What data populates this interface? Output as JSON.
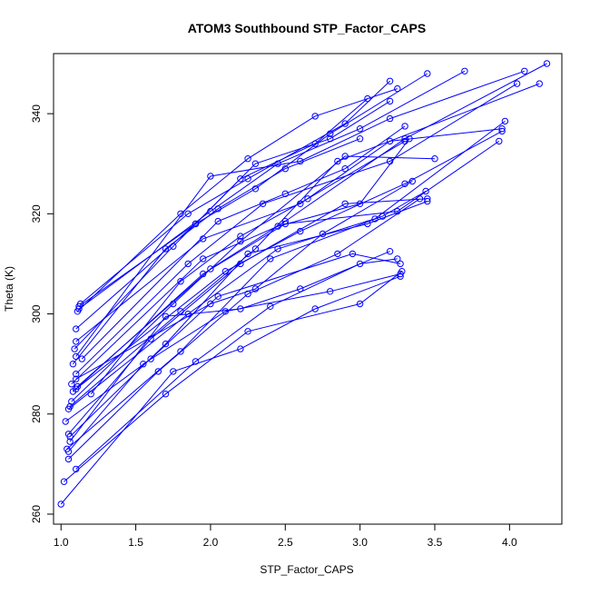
{
  "chart_data": {
    "type": "line",
    "title": "ATOM3 Southbound STP_Factor_CAPS",
    "xlabel": "STP_Factor_CAPS",
    "ylabel": "Theta (K)",
    "xlim": [
      0.95,
      4.35
    ],
    "ylim": [
      258,
      352
    ],
    "xticks": [
      1.0,
      1.5,
      2.0,
      2.5,
      3.0,
      3.5,
      4.0
    ],
    "xtick_labels": [
      "1.0",
      "1.5",
      "2.0",
      "2.5",
      "3.0",
      "3.5",
      "4.0"
    ],
    "yticks": [
      260,
      280,
      300,
      320,
      340
    ],
    "ytick_labels": [
      "260",
      "280",
      "300",
      "320",
      "340"
    ],
    "grid": false,
    "legend": "none",
    "series_color": "#0000ff",
    "marker": "open-circle",
    "series": [
      {
        "x": [
          1.12,
          1.9,
          2.3,
          2.8,
          3.45
        ],
        "y": [
          301.5,
          318,
          325,
          336,
          348
        ]
      },
      {
        "x": [
          1.13,
          1.85,
          2.25,
          2.9,
          3.2
        ],
        "y": [
          302,
          320,
          327,
          338,
          346.5
        ]
      },
      {
        "x": [
          1.11,
          1.8,
          2.25,
          2.7,
          3.25
        ],
        "y": [
          300.5,
          320,
          331,
          339.5,
          345
        ]
      },
      {
        "x": [
          1.12,
          2.0,
          2.45,
          3.0,
          3.7
        ],
        "y": [
          301,
          320.5,
          330,
          337,
          348.5
        ]
      },
      {
        "x": [
          1.1,
          1.9,
          2.3,
          2.8,
          3.2
        ],
        "y": [
          297,
          318,
          330,
          335,
          342.5
        ]
      },
      {
        "x": [
          1.09,
          1.75,
          2.2,
          2.7,
          3.05
        ],
        "y": [
          293,
          313.5,
          327,
          334,
          343
        ]
      },
      {
        "x": [
          1.1,
          2.0,
          2.6,
          3.2,
          4.1
        ],
        "y": [
          291.5,
          327.5,
          330.5,
          339,
          348.5
        ]
      },
      {
        "x": [
          1.08,
          1.7,
          2.05,
          2.5,
          3.0
        ],
        "y": [
          290,
          313,
          321,
          329,
          335
        ]
      },
      {
        "x": [
          1.1,
          1.85,
          2.35,
          3.2,
          4.05
        ],
        "y": [
          288,
          310,
          322,
          330.5,
          346
        ]
      },
      {
        "x": [
          1.11,
          2.0,
          2.5,
          3.3,
          4.25
        ],
        "y": [
          285.5,
          309,
          318.5,
          335,
          350
        ]
      },
      {
        "x": [
          1.07,
          1.75,
          2.2,
          2.9,
          3.5
        ],
        "y": [
          282.5,
          302,
          314.5,
          331.5,
          331
        ]
      },
      {
        "x": [
          1.06,
          1.8,
          2.3,
          2.85,
          4.2
        ],
        "y": [
          281.5,
          300.5,
          313,
          330.5,
          346
        ]
      },
      {
        "x": [
          1.05,
          1.85,
          2.45,
          3.1,
          3.97
        ],
        "y": [
          281,
          300,
          313,
          319,
          338.5
        ]
      },
      {
        "x": [
          1.1,
          2.1,
          2.6,
          3.3,
          3.95
        ],
        "y": [
          285,
          308.5,
          316.5,
          326,
          336.5
        ]
      },
      {
        "x": [
          1.08,
          1.95,
          2.5,
          3.25,
          3.93
        ],
        "y": [
          284.5,
          308,
          318,
          320.5,
          334.5
        ]
      },
      {
        "x": [
          1.05,
          1.6,
          2.2,
          2.9,
          3.45
        ],
        "y": [
          276,
          295,
          310,
          322,
          323
        ]
      },
      {
        "x": [
          1.06,
          1.7,
          2.25,
          3.05,
          3.45
        ],
        "y": [
          275.5,
          294,
          312,
          318,
          322.5
        ]
      },
      {
        "x": [
          1.04,
          1.8,
          2.4,
          3.15,
          3.44
        ],
        "y": [
          273,
          292.5,
          311,
          319.5,
          324.5
        ]
      },
      {
        "x": [
          1.05,
          1.65,
          2.25,
          2.85,
          3.4
        ],
        "y": [
          271,
          288.5,
          304,
          312,
          323
        ]
      },
      {
        "x": [
          1.1,
          1.9,
          2.4,
          3.0,
          3.25
        ],
        "y": [
          269,
          290.5,
          301.5,
          310,
          311
        ]
      },
      {
        "x": [
          1.02,
          1.7,
          2.25,
          3.0,
          3.28
        ],
        "y": [
          266.5,
          284,
          296.5,
          302,
          308.5
        ]
      },
      {
        "x": [
          1.0,
          1.75,
          2.2,
          2.7,
          3.27
        ],
        "y": [
          262,
          288.5,
          293,
          301,
          307.5
        ]
      },
      {
        "x": [
          1.03,
          1.6,
          2.05,
          2.95,
          3.27
        ],
        "y": [
          278.5,
          291,
          303.5,
          312,
          310
        ]
      },
      {
        "x": [
          1.05,
          1.55,
          2.1,
          2.8,
          3.27
        ],
        "y": [
          272.5,
          290,
          300.5,
          304.5,
          308
        ]
      },
      {
        "x": [
          1.06,
          1.7,
          2.2,
          2.6,
          3.2
        ],
        "y": [
          274.5,
          299.5,
          301,
          305,
          312.5
        ]
      },
      {
        "x": [
          1.1,
          2.0,
          2.3,
          2.75,
          3.35
        ],
        "y": [
          287,
          302,
          305,
          316,
          326.5
        ]
      },
      {
        "x": [
          1.2,
          1.8,
          2.2,
          2.65,
          3.3
        ],
        "y": [
          284,
          306.5,
          315.5,
          323,
          334.5
        ]
      },
      {
        "x": [
          1.07,
          1.95,
          2.45,
          3.0,
          3.33
        ],
        "y": [
          286,
          311,
          317.5,
          322,
          335
        ]
      },
      {
        "x": [
          1.1,
          1.95,
          2.6,
          3.2,
          3.95
        ],
        "y": [
          294.5,
          315,
          322,
          334.5,
          337
        ]
      },
      {
        "x": [
          1.14,
          2.05,
          2.5,
          2.9,
          3.3
        ],
        "y": [
          291,
          318.5,
          324,
          329,
          337.5
        ]
      }
    ]
  }
}
